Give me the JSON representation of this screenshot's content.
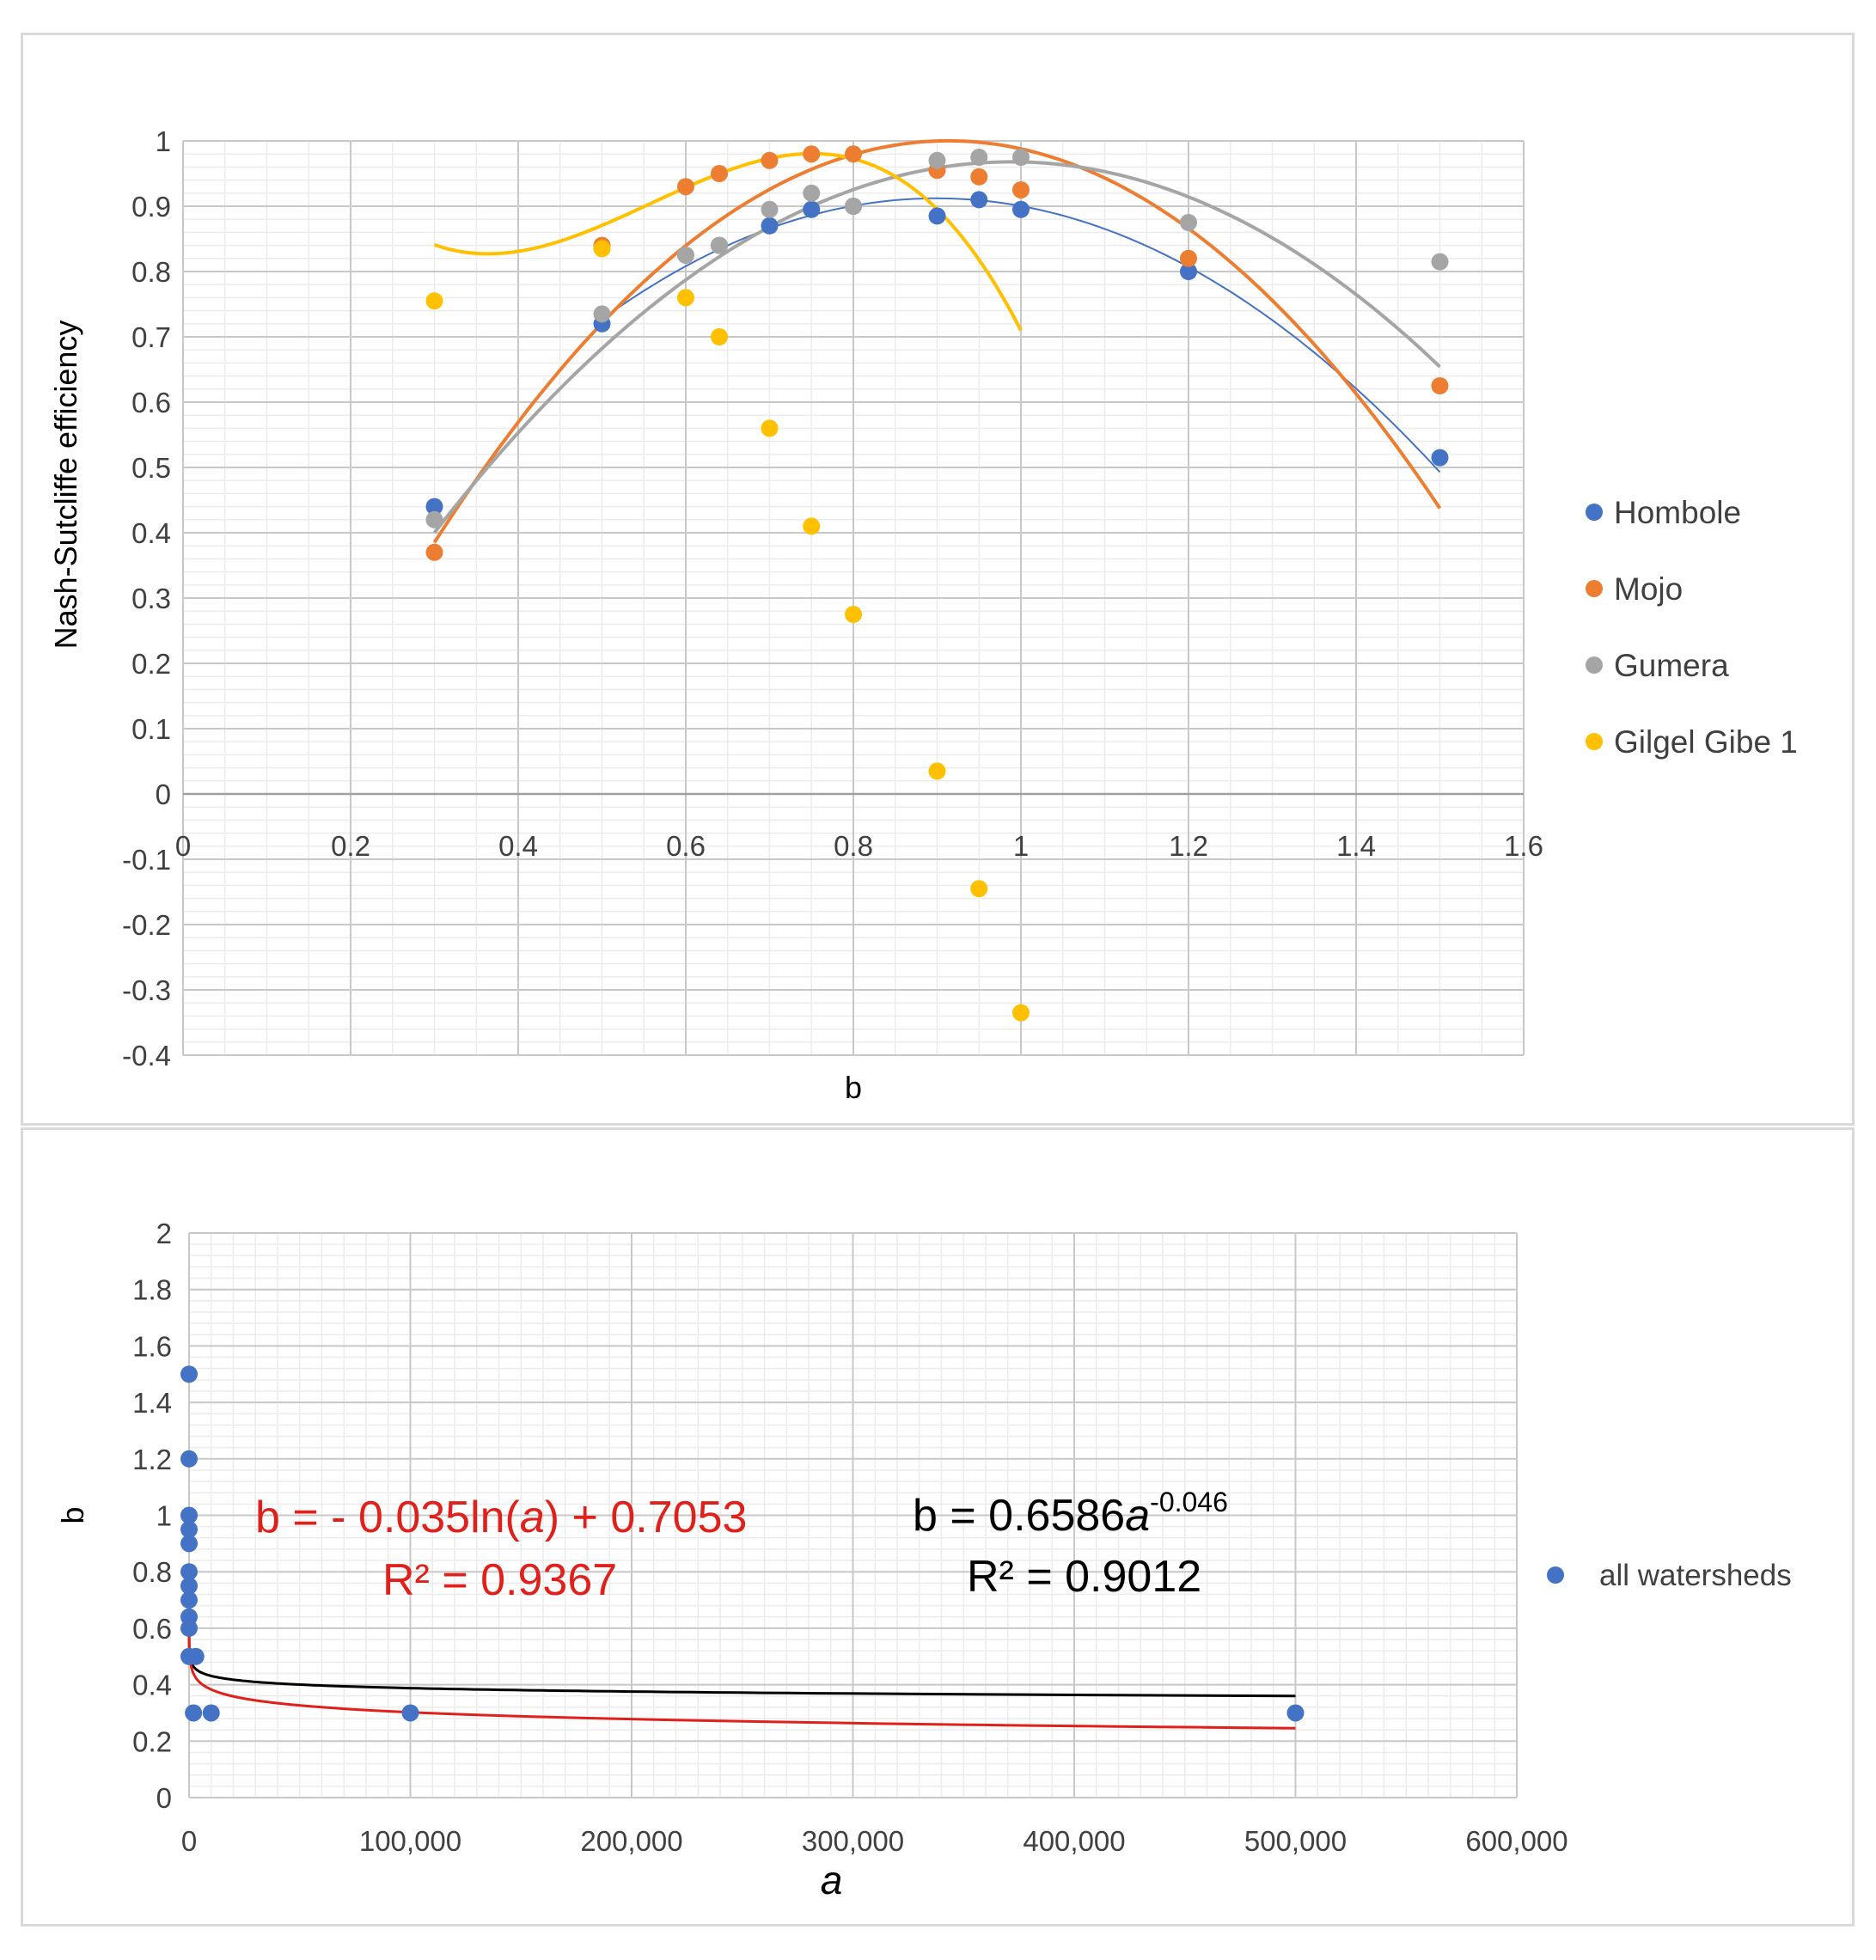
{
  "chart_data": [
    {
      "type": "scatter",
      "xlabel": "b",
      "ylabel": "Nash-Sutcliffe efficiency",
      "xlim": [
        0,
        1.6
      ],
      "ylim": [
        -0.4,
        1
      ],
      "x_ticks": [
        "0",
        "0.2",
        "0.4",
        "0.6",
        "0.8",
        "1",
        "1.2",
        "1.4",
        "1.6"
      ],
      "y_ticks": [
        "-0.4",
        "-0.3",
        "-0.2",
        "-0.1",
        "0",
        "0.1",
        "0.2",
        "0.3",
        "0.4",
        "0.5",
        "0.6",
        "0.7",
        "0.8",
        "0.9",
        "1"
      ],
      "legend": [
        "Hombole",
        "Mojo",
        "Gumera",
        "Gilgel Gibe 1"
      ],
      "series": [
        {
          "name": "Hombole",
          "color": "#4472c4",
          "trend_width": 2,
          "points": [
            [
              0.3,
              0.44
            ],
            [
              0.5,
              0.72
            ],
            [
              0.64,
              0.84
            ],
            [
              0.7,
              0.87
            ],
            [
              0.75,
              0.895
            ],
            [
              0.8,
              0.9
            ],
            [
              0.9,
              0.885
            ],
            [
              0.95,
              0.91
            ],
            [
              1.0,
              0.895
            ],
            [
              1.2,
              0.8
            ],
            [
              1.5,
              0.515
            ]
          ],
          "trend": {
            "type": "quadratic",
            "coef": [
              -1.1614,
              2.0886,
              -0.0269
            ],
            "x_range": [
              0.5,
              1.5
            ]
          }
        },
        {
          "name": "Mojo",
          "color": "#ed7d31",
          "trend_width": 4,
          "points": [
            [
              0.3,
              0.37
            ],
            [
              0.5,
              0.84
            ],
            [
              0.6,
              0.93
            ],
            [
              0.64,
              0.95
            ],
            [
              0.7,
              0.97
            ],
            [
              0.75,
              0.98
            ],
            [
              0.8,
              0.98
            ],
            [
              0.9,
              0.955
            ],
            [
              0.95,
              0.945
            ],
            [
              1.0,
              0.925
            ],
            [
              1.2,
              0.82
            ],
            [
              1.5,
              0.625
            ]
          ],
          "trend": {
            "type": "quadratic",
            "coef": [
              -1.6349,
              2.9865,
              -0.3637
            ],
            "x_range": [
              0.3,
              1.5
            ]
          }
        },
        {
          "name": "Gumera",
          "color": "#a5a5a5",
          "trend_width": 4,
          "points": [
            [
              0.3,
              0.42
            ],
            [
              0.5,
              0.735
            ],
            [
              0.6,
              0.825
            ],
            [
              0.64,
              0.84
            ],
            [
              0.7,
              0.895
            ],
            [
              0.75,
              0.92
            ],
            [
              0.8,
              0.9
            ],
            [
              0.9,
              0.97
            ],
            [
              0.95,
              0.975
            ],
            [
              1.0,
              0.975
            ],
            [
              1.2,
              0.875
            ],
            [
              1.5,
              0.815
            ]
          ],
          "trend": {
            "type": "quadratic",
            "coef": [
              -1.1984,
              2.3688,
              -0.2026
            ],
            "x_range": [
              0.3,
              1.5
            ]
          }
        },
        {
          "name": "Gilgel Gibe 1",
          "color": "#ffc000",
          "trend_width": 4,
          "points": [
            [
              0.3,
              0.755
            ],
            [
              0.5,
              0.835
            ],
            [
              0.6,
              0.76
            ],
            [
              0.64,
              0.7
            ],
            [
              0.7,
              0.56
            ],
            [
              0.75,
              0.41
            ],
            [
              0.8,
              0.275
            ],
            [
              0.9,
              0.035
            ],
            [
              0.95,
              -0.145
            ],
            [
              1.0,
              -0.335
            ]
          ],
          "trend": {
            "type": "cubic",
            "coef": [
              -5.2778,
              8.8286,
              -4.3286,
              1.4875
            ],
            "x_range": [
              0.3,
              1.0
            ]
          }
        }
      ]
    },
    {
      "type": "scatter",
      "xlabel": "a",
      "ylabel": "b",
      "xlim": [
        0,
        600000
      ],
      "ylim": [
        0,
        2
      ],
      "x_ticks": [
        "0",
        "100,000",
        "200,000",
        "300,000",
        "400,000",
        "500,000",
        "600,000"
      ],
      "y_ticks": [
        "0",
        "0.2",
        "0.4",
        "0.6",
        "0.8",
        "1",
        "1.2",
        "1.4",
        "1.6",
        "1.8",
        "2"
      ],
      "legend": [
        "all watersheds"
      ],
      "series": [
        {
          "name": "all watersheds",
          "color": "#4472c4",
          "points": [
            [
              0,
              1.5
            ],
            [
              0,
              1.2
            ],
            [
              0,
              1.0
            ],
            [
              0,
              0.95
            ],
            [
              0,
              0.9
            ],
            [
              0,
              0.8
            ],
            [
              0,
              0.75
            ],
            [
              0,
              0.7
            ],
            [
              0,
              0.64
            ],
            [
              0,
              0.6
            ],
            [
              0,
              0.5
            ],
            [
              3000,
              0.5
            ],
            [
              2000,
              0.3
            ],
            [
              10000,
              0.3
            ],
            [
              100000,
              0.3
            ],
            [
              500000,
              0.3
            ]
          ]
        }
      ],
      "trendlines": [
        {
          "type": "power",
          "coef": [
            0.6586,
            -0.046
          ],
          "color": "#000000",
          "x_range": [
            1,
            500000
          ]
        },
        {
          "type": "log",
          "coef": [
            -0.035,
            0.7053
          ],
          "color": "#e0201b",
          "x_range": [
            1,
            500000
          ]
        }
      ],
      "annotations": {
        "log_eq": "b = - 0.035ln(a) + 0.7053",
        "log_eq_parts": {
          "pre": "b = - 0.035ln(",
          "var": "a",
          "post": ") + 0.7053"
        },
        "log_r2": "R² = 0.9367",
        "power_eq": "b = 0.6586a^-0.046",
        "power_eq_parts": {
          "pre": "b = 0.6586",
          "var": "a",
          "exp": "-0.046"
        },
        "power_r2": "R² = 0.9012"
      }
    }
  ]
}
